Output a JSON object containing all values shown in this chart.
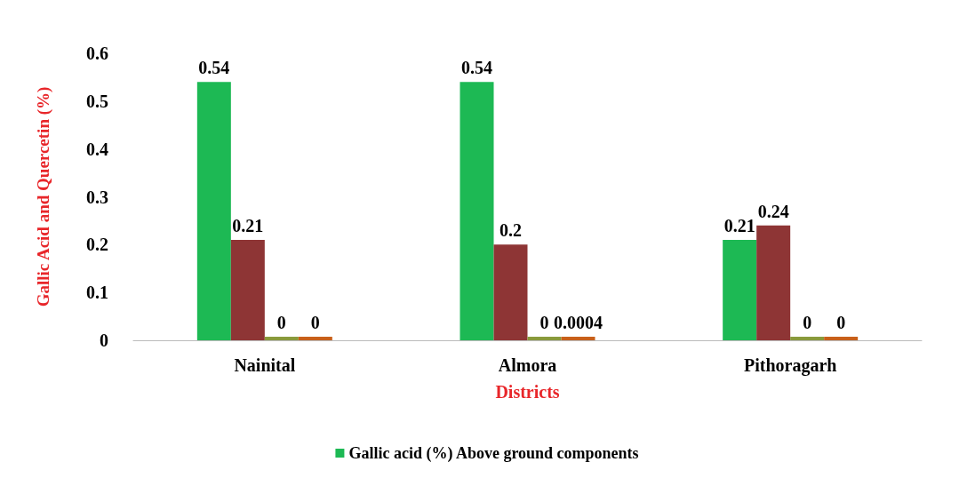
{
  "chart_data": {
    "type": "bar",
    "xlabel": "Districts",
    "ylabel": "Gallic Acid and Quercetin (%)",
    "categories": [
      "Nainital",
      "Almora",
      "Pithoragarh"
    ],
    "series": [
      {
        "name": "Gallic acid (%) Above ground components",
        "color": "#1db954",
        "values": [
          0.54,
          0.54,
          0.21
        ]
      },
      {
        "color": "#8e3535",
        "values": [
          0.21,
          0.2,
          0.24
        ]
      },
      {
        "color": "#8a9a3c",
        "values": [
          0,
          0,
          0
        ]
      },
      {
        "color": "#c8601a",
        "values": [
          0,
          0.0004,
          0
        ]
      }
    ],
    "ylim": [
      0,
      0.6
    ],
    "yticks": [
      0,
      0.1,
      0.2,
      0.3,
      0.4,
      0.5,
      0.6
    ],
    "grid": false,
    "legend": "bottom",
    "data_labels": true
  }
}
